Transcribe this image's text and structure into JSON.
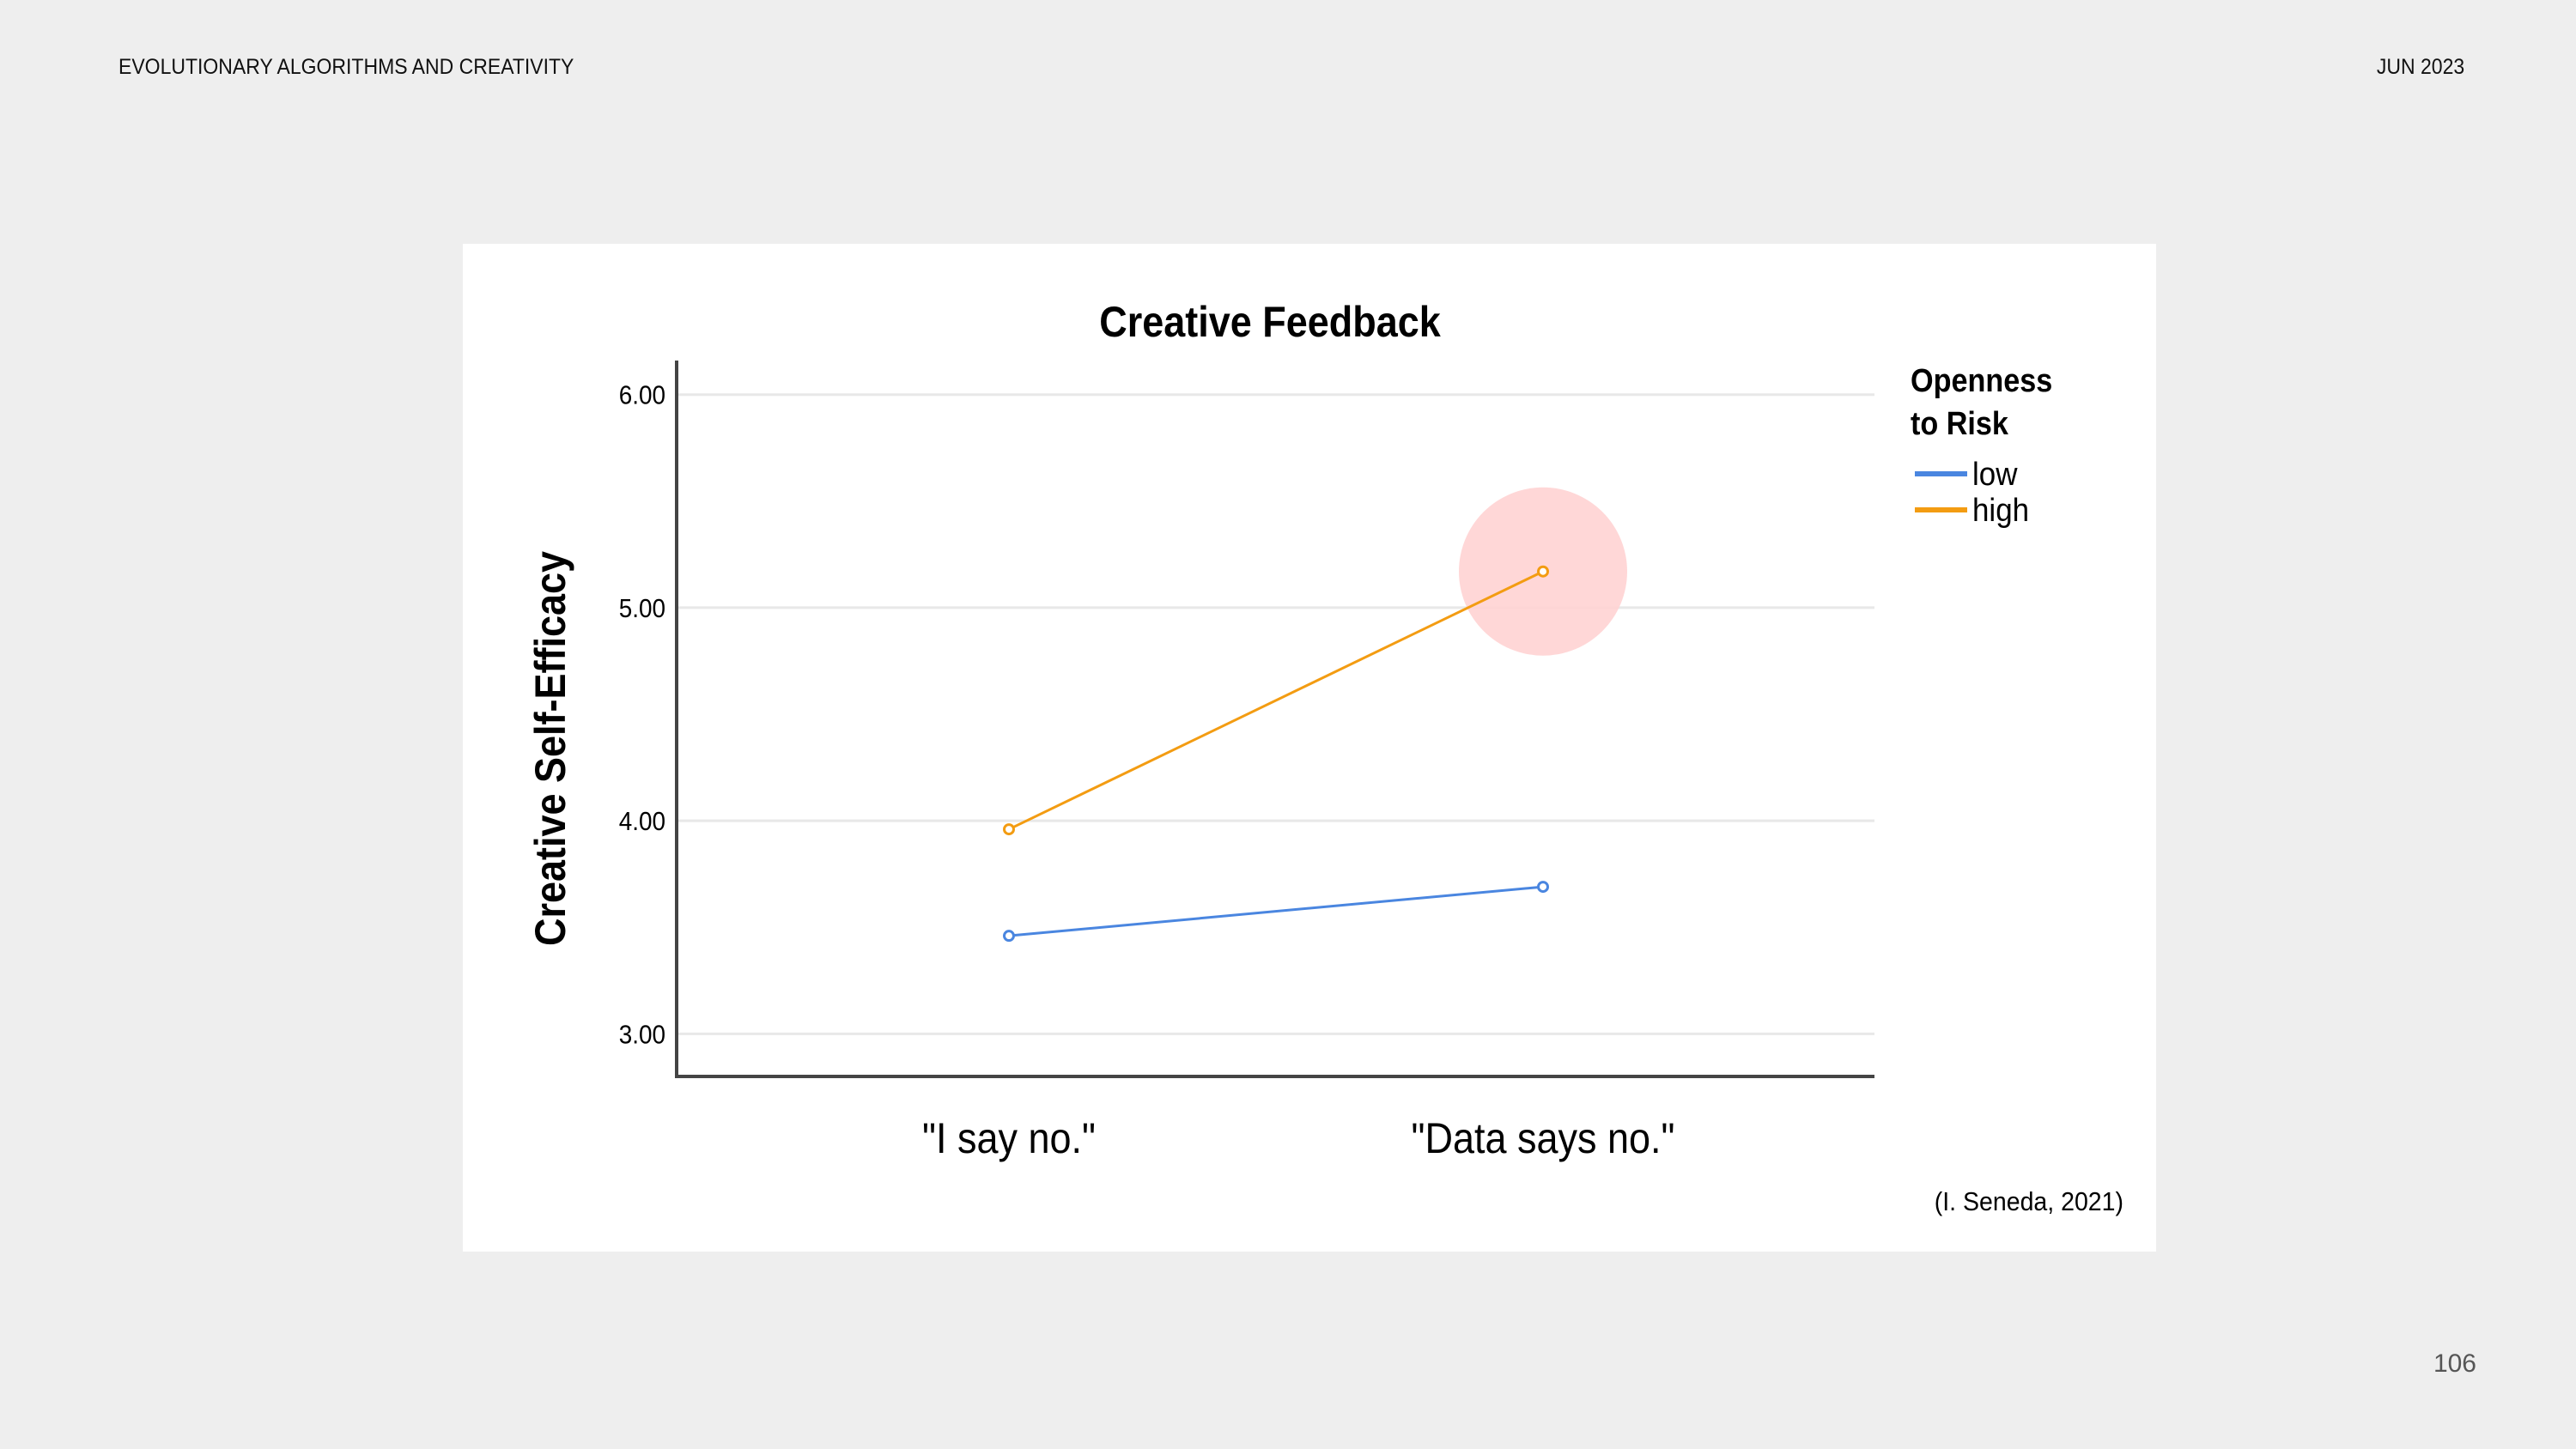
{
  "header": {
    "title": "EVOLUTIONARY ALGORITHMS AND CREATIVITY",
    "date": "JUN 2023"
  },
  "footer": {
    "page_number": "106"
  },
  "chart_data": {
    "type": "line",
    "title": "Creative Feedback",
    "xlabel": "",
    "ylabel": "Creative Self-Efficacy",
    "categories": [
      "\"I say no.\"",
      "\"Data says no.\""
    ],
    "ylim": [
      2.8,
      6.16
    ],
    "yticks": [
      3.0,
      4.0,
      5.0,
      6.0
    ],
    "ytick_labels": [
      "3.00",
      "4.00",
      "5.00",
      "6.00"
    ],
    "grid": true,
    "legend": {
      "title_line1": "Openness",
      "title_line2": "to Risk",
      "placement": "right"
    },
    "series": [
      {
        "name": "low",
        "values": [
          3.46,
          3.69
        ],
        "color": "#4a86e0"
      },
      {
        "name": "high",
        "values": [
          3.96,
          5.17
        ],
        "color": "#f39c12"
      }
    ],
    "highlight": {
      "series": "high",
      "category_index": 1,
      "color": "#ffd3d3"
    },
    "source": "(I. Seneda, 2021)"
  }
}
